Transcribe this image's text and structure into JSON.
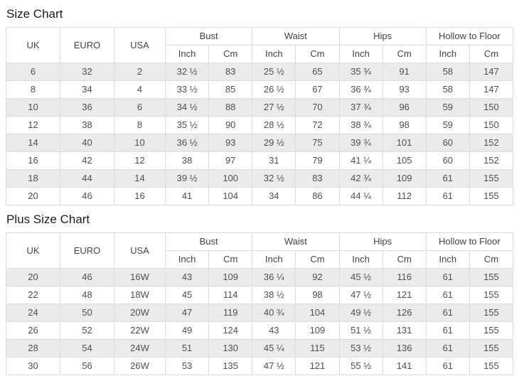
{
  "charts": [
    {
      "title": "Size Chart",
      "column_headers": [
        "UK",
        "EURO",
        "USA"
      ],
      "group_headers": [
        "Bust",
        "Waist",
        "Hips",
        "Hollow to Floor"
      ],
      "unit_headers": [
        "Inch",
        "Cm"
      ],
      "rows": [
        [
          "6",
          "32",
          "2",
          "32 ½",
          "83",
          "25 ½",
          "65",
          "35 ¾",
          "91",
          "58",
          "147"
        ],
        [
          "8",
          "34",
          "4",
          "33 ½",
          "85",
          "26 ½",
          "67",
          "36 ¾",
          "93",
          "58",
          "147"
        ],
        [
          "10",
          "36",
          "6",
          "34 ½",
          "88",
          "27 ½",
          "70",
          "37 ¾",
          "96",
          "59",
          "150"
        ],
        [
          "12",
          "38",
          "8",
          "35 ½",
          "90",
          "28 ½",
          "72",
          "38 ¾",
          "98",
          "59",
          "150"
        ],
        [
          "14",
          "40",
          "10",
          "36 ½",
          "93",
          "29 ½",
          "75",
          "39 ¾",
          "101",
          "60",
          "152"
        ],
        [
          "16",
          "42",
          "12",
          "38",
          "97",
          "31",
          "79",
          "41 ¼",
          "105",
          "60",
          "152"
        ],
        [
          "18",
          "44",
          "14",
          "39 ½",
          "100",
          "32 ½",
          "83",
          "42 ¾",
          "109",
          "61",
          "155"
        ],
        [
          "20",
          "46",
          "16",
          "41",
          "104",
          "34",
          "86",
          "44 ¼",
          "112",
          "61",
          "155"
        ]
      ]
    },
    {
      "title": "Plus Size Chart",
      "column_headers": [
        "UK",
        "EURO",
        "USA"
      ],
      "group_headers": [
        "Bust",
        "Waist",
        "Hips",
        "Hollow to Floor"
      ],
      "unit_headers": [
        "Inch",
        "Cm"
      ],
      "rows": [
        [
          "20",
          "46",
          "16W",
          "43",
          "109",
          "36 ¼",
          "92",
          "45 ½",
          "116",
          "61",
          "155"
        ],
        [
          "22",
          "48",
          "18W",
          "45",
          "114",
          "38 ½",
          "98",
          "47 ½",
          "121",
          "61",
          "155"
        ],
        [
          "24",
          "50",
          "20W",
          "47",
          "119",
          "40 ¾",
          "104",
          "49 ½",
          "126",
          "61",
          "155"
        ],
        [
          "26",
          "52",
          "22W",
          "49",
          "124",
          "43",
          "109",
          "51 ½",
          "131",
          "61",
          "155"
        ],
        [
          "28",
          "54",
          "24W",
          "51",
          "130",
          "45 ¼",
          "115",
          "53 ½",
          "136",
          "61",
          "155"
        ],
        [
          "30",
          "56",
          "26W",
          "53",
          "135",
          "47 ½",
          "121",
          "55 ½",
          "141",
          "61",
          "155"
        ]
      ]
    }
  ],
  "colors": {
    "stripe": "#ebebeb",
    "border": "#dcdcdc",
    "body_text": "#4f4f4f",
    "title_text": "#1c1c1c"
  }
}
